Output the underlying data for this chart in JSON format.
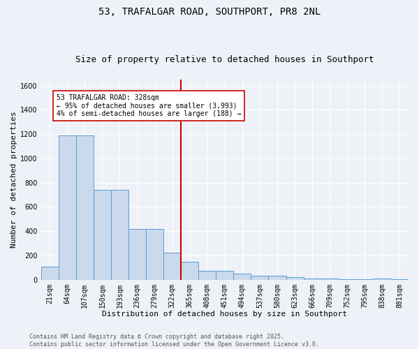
{
  "title_line1": "53, TRAFALGAR ROAD, SOUTHPORT, PR8 2NL",
  "title_line2": "Size of property relative to detached houses in Southport",
  "xlabel": "Distribution of detached houses by size in Southport",
  "ylabel": "Number of detached properties",
  "bar_labels": [
    "21sqm",
    "64sqm",
    "107sqm",
    "150sqm",
    "193sqm",
    "236sqm",
    "279sqm",
    "322sqm",
    "365sqm",
    "408sqm",
    "451sqm",
    "494sqm",
    "537sqm",
    "580sqm",
    "623sqm",
    "666sqm",
    "709sqm",
    "752sqm",
    "795sqm",
    "838sqm",
    "881sqm"
  ],
  "bar_heights": [
    107,
    1190,
    1190,
    740,
    740,
    420,
    420,
    225,
    150,
    75,
    75,
    50,
    35,
    35,
    20,
    12,
    12,
    5,
    5,
    12,
    5
  ],
  "bar_color": "#cad9ec",
  "bar_edge_color": "#5b9bd5",
  "vline_x_index": 7.5,
  "vline_color": "#cc0000",
  "annotation_text": "53 TRAFALGAR ROAD: 328sqm\n← 95% of detached houses are smaller (3,993)\n4% of semi-detached houses are larger (188) →",
  "annotation_box_color": "#ffffff",
  "annotation_box_edge_color": "#cc0000",
  "ylim": [
    0,
    1650
  ],
  "yticks": [
    0,
    200,
    400,
    600,
    800,
    1000,
    1200,
    1400,
    1600
  ],
  "footer_line1": "Contains HM Land Registry data © Crown copyright and database right 2025.",
  "footer_line2": "Contains public sector information licensed under the Open Government Licence v3.0.",
  "bg_color": "#eef2f8",
  "grid_color": "#ffffff",
  "title_fontsize": 10,
  "subtitle_fontsize": 9,
  "axis_label_fontsize": 8,
  "tick_fontsize": 7,
  "annotation_fontsize": 7,
  "footer_fontsize": 6
}
